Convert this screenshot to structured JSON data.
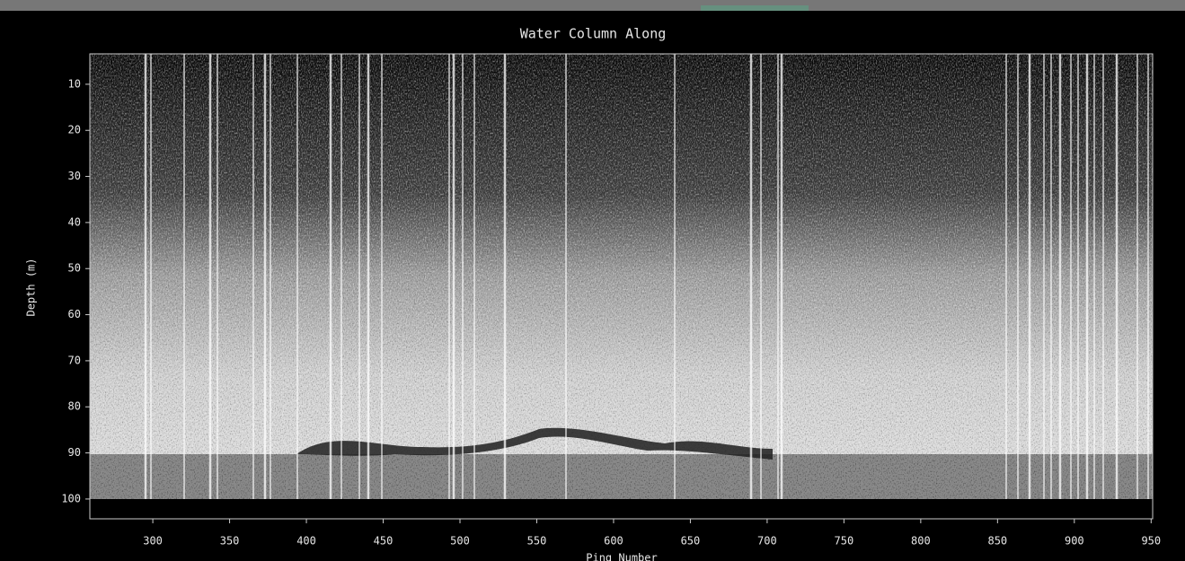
{
  "chart_data": {
    "type": "echogram",
    "title": "Water Column Along",
    "x_label": "Ping Number",
    "y_label": "Depth (m)",
    "xlim": [
      259,
      951
    ],
    "ylim": [
      3.4,
      104.3
    ],
    "y_inverted": true,
    "xticks": [
      300,
      350,
      400,
      450,
      500,
      550,
      600,
      650,
      700,
      750,
      800,
      850,
      900,
      950
    ],
    "yticks": [
      10,
      20,
      30,
      40,
      50,
      60,
      70,
      80,
      90,
      100
    ]
  }
}
